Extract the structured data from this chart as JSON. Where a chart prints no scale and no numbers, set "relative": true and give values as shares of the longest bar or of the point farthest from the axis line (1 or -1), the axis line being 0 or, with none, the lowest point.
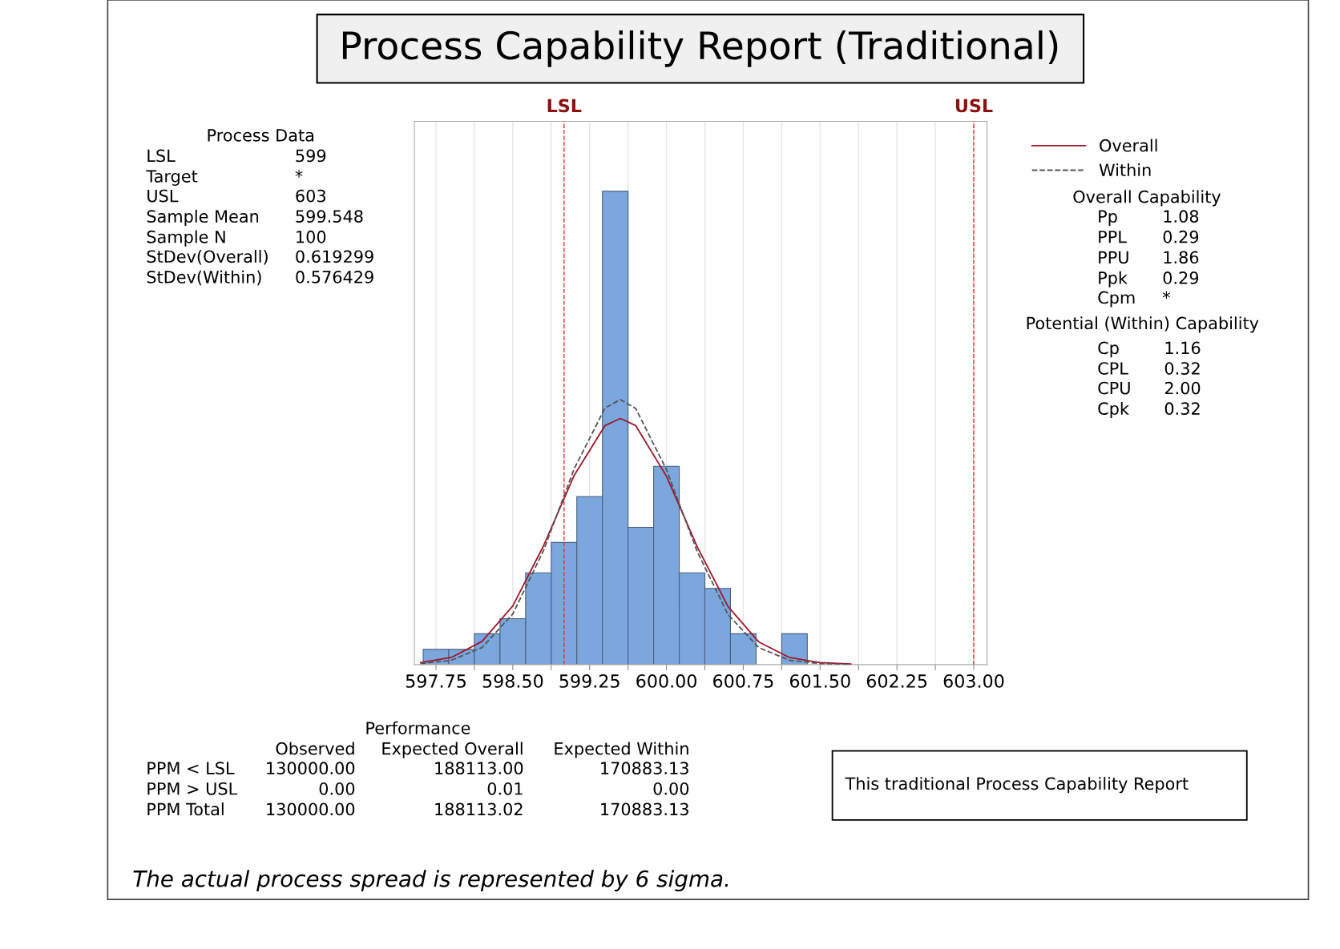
{
  "chart_data": {
    "type": "histogram",
    "title": "Process Capability Report (Traditional)",
    "relative": true,
    "bins": [
      597.625,
      597.875,
      598.125,
      598.375,
      598.625,
      598.875,
      599.125,
      599.375,
      599.625,
      599.875,
      600.125,
      600.375,
      600.625,
      600.875,
      601.125,
      601.375
    ],
    "values": [
      0.032,
      0.032,
      0.065,
      0.097,
      0.194,
      0.258,
      0.355,
      1,
      0.29,
      0.419,
      0.194,
      0.161,
      0.065,
      0,
      0.065
    ],
    "color": "#7ba7dc",
    "series": [
      {
        "type": "line",
        "name": "Overall",
        "color": "#a0162a",
        "line_style": "solid",
        "x": [
          597.6,
          597.9,
          598.2,
          598.5,
          598.8,
          599.1,
          599.4,
          599.55,
          599.7,
          600.0,
          600.3,
          600.6,
          600.9,
          601.2,
          601.5,
          601.8
        ],
        "values": [
          0.004,
          0.015,
          0.049,
          0.124,
          0.251,
          0.4,
          0.505,
          0.52,
          0.505,
          0.398,
          0.249,
          0.123,
          0.048,
          0.015,
          0.004,
          0.001
        ]
      },
      {
        "type": "line",
        "name": "Within",
        "color": "#555555",
        "line_style": "dashed",
        "x": [
          597.6,
          597.9,
          598.2,
          598.5,
          598.8,
          599.1,
          599.4,
          599.55,
          599.7,
          600.0,
          600.3,
          600.6,
          600.9,
          601.2,
          601.5,
          601.8
        ],
        "values": [
          0.002,
          0.009,
          0.036,
          0.107,
          0.241,
          0.414,
          0.542,
          0.56,
          0.541,
          0.412,
          0.239,
          0.106,
          0.036,
          0.009,
          0.002,
          0
        ]
      }
    ],
    "xlim": [
      597.54,
      603.13
    ],
    "xticks": [
      597.75,
      {
        "value": 598.125,
        "label": null
      },
      {
        "value": 598.5,
        "label": "598.50"
      },
      {
        "value": 598.875,
        "label": null
      },
      599.25,
      {
        "value": 599.625,
        "label": null
      },
      {
        "value": 600,
        "label": "600.00"
      },
      {
        "value": 600.375,
        "label": null
      },
      600.75,
      {
        "value": 601.125,
        "label": null
      },
      {
        "value": 601.5,
        "label": "601.50"
      },
      {
        "value": 601.875,
        "label": null
      },
      602.25,
      {
        "value": 602.625,
        "label": null
      },
      {
        "value": 603,
        "label": "603.00"
      }
    ],
    "ref_lines": [
      {
        "axis": "x",
        "value": 599,
        "label": "LSL",
        "color": "#e03030",
        "line_style": "dashed"
      },
      {
        "axis": "x",
        "value": 603,
        "label": "USL",
        "color": "#e03030",
        "line_style": "dashed"
      }
    ],
    "grid": "x",
    "legend": "top right",
    "annotations": [
      "Process Data",
      "LSL",
      "599",
      "Target",
      "*",
      "USL",
      "603",
      "Sample Mean",
      "599.548",
      "Sample N",
      "100",
      "StDev(Overall)",
      "0.619299",
      "StDev(Within)",
      "0.576429",
      "Overall Capability",
      "Pp",
      "1.08",
      "PPL",
      "0.29",
      "PPU",
      "1.86",
      "Ppk",
      "0.29",
      "Cpm",
      "*",
      "Potential (Within) Capability",
      "Cp",
      "1.16",
      "CPL",
      "0.32",
      "CPU",
      "2.00",
      "Cpk",
      "0.32",
      "Performance",
      "Observed",
      "Expected Overall",
      "Expected Within",
      "PPM < LSL",
      "130000.00",
      "188113.00",
      "170883.13",
      "PPM > USL",
      "0.00",
      "0.01",
      "0.00",
      "PPM Total",
      "130000.00",
      "188113.02",
      "170883.13",
      "This traditional Process Capability Report",
      "The actual process spread is represented by 6 sigma."
    ]
  }
}
